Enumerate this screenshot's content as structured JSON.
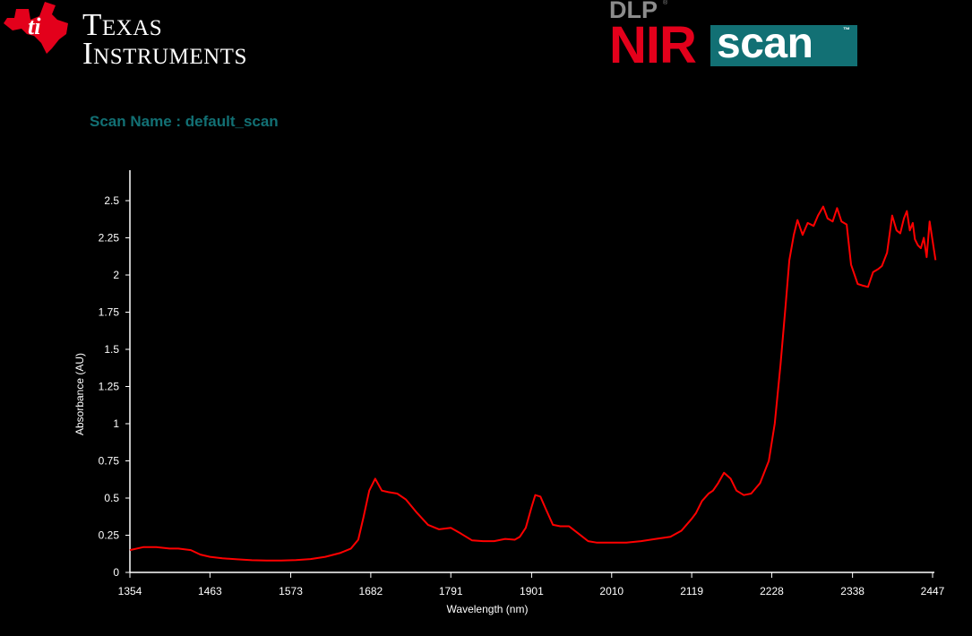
{
  "header": {
    "ti_logo": {
      "line1": "Texas",
      "line2": "Instruments"
    },
    "product_logo": {
      "prefix": "DLP",
      "nir": "NIR",
      "scan": "scan"
    },
    "scan_name": "Scan Name : default_scan"
  },
  "colors": {
    "background": "#000000",
    "accent_teal": "#127074",
    "line_red": "#ff0000",
    "ti_red": "#e3001b"
  },
  "chart_data": {
    "type": "line",
    "title": "",
    "xlabel": "Wavelength (nm)",
    "ylabel": "Absorbance (AU)",
    "xlim": [
      1354,
      2455
    ],
    "ylim": [
      0,
      2.75
    ],
    "x_ticks": [
      1354,
      1463,
      1573,
      1682,
      1791,
      1901,
      2010,
      2119,
      2228,
      2338,
      2447
    ],
    "y_ticks": [
      0,
      0.25,
      0.5,
      0.75,
      1,
      1.25,
      1.5,
      1.75,
      2,
      2.25,
      2.5
    ],
    "y_tick_labels": [
      "0",
      "0.25",
      "0.5",
      "0.75",
      "1",
      "1.25",
      "1.5",
      "1.75",
      "2",
      "2.25",
      "2.5"
    ],
    "grid": false,
    "legend": "none",
    "series": [
      {
        "color": "#ff0000",
        "x": [
          1354,
          1372,
          1390,
          1408,
          1420,
          1437,
          1450,
          1463,
          1480,
          1500,
          1520,
          1540,
          1560,
          1580,
          1600,
          1620,
          1640,
          1655,
          1665,
          1672,
          1680,
          1688,
          1697,
          1706,
          1718,
          1730,
          1745,
          1760,
          1775,
          1791,
          1805,
          1820,
          1835,
          1850,
          1865,
          1878,
          1885,
          1893,
          1901,
          1906,
          1913,
          1920,
          1930,
          1940,
          1952,
          1965,
          1978,
          1990,
          2010,
          2030,
          2050,
          2070,
          2090,
          2105,
          2119,
          2125,
          2133,
          2142,
          2148,
          2155,
          2163,
          2172,
          2180,
          2190,
          2200,
          2212,
          2224,
          2232,
          2240,
          2247,
          2252,
          2258,
          2263,
          2270,
          2277,
          2285,
          2291,
          2298,
          2304,
          2311,
          2317,
          2323,
          2330,
          2336,
          2345,
          2351,
          2359,
          2366,
          2373,
          2378,
          2385,
          2392,
          2398,
          2403,
          2408,
          2412,
          2416,
          2420,
          2423,
          2427,
          2431,
          2435,
          2439,
          2443,
          2447,
          2451
        ],
        "y": [
          0.15,
          0.17,
          0.17,
          0.16,
          0.16,
          0.15,
          0.12,
          0.105,
          0.095,
          0.088,
          0.082,
          0.08,
          0.08,
          0.083,
          0.09,
          0.105,
          0.13,
          0.16,
          0.22,
          0.37,
          0.55,
          0.63,
          0.55,
          0.54,
          0.53,
          0.49,
          0.4,
          0.32,
          0.29,
          0.3,
          0.26,
          0.215,
          0.21,
          0.21,
          0.225,
          0.22,
          0.24,
          0.3,
          0.44,
          0.52,
          0.51,
          0.43,
          0.32,
          0.31,
          0.31,
          0.26,
          0.21,
          0.2,
          0.2,
          0.2,
          0.21,
          0.225,
          0.24,
          0.28,
          0.36,
          0.4,
          0.48,
          0.53,
          0.55,
          0.6,
          0.67,
          0.63,
          0.55,
          0.52,
          0.53,
          0.6,
          0.75,
          1.0,
          1.4,
          1.8,
          2.1,
          2.27,
          2.37,
          2.27,
          2.35,
          2.33,
          2.4,
          2.46,
          2.38,
          2.36,
          2.45,
          2.36,
          2.34,
          2.07,
          1.94,
          1.93,
          1.92,
          2.02,
          2.04,
          2.06,
          2.15,
          2.4,
          2.3,
          2.28,
          2.38,
          2.43,
          2.3,
          2.35,
          2.24,
          2.2,
          2.18,
          2.25,
          2.12,
          2.36,
          2.23,
          2.1
        ]
      }
    ]
  }
}
